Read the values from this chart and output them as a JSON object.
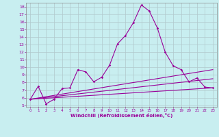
{
  "xlabel": "Windchill (Refroidissement éolien,°C)",
  "xlim": [
    -0.5,
    23.5
  ],
  "ylim": [
    4.8,
    18.5
  ],
  "xticks": [
    0,
    1,
    2,
    3,
    4,
    5,
    6,
    7,
    8,
    9,
    10,
    11,
    12,
    13,
    14,
    15,
    16,
    17,
    18,
    19,
    20,
    21,
    22,
    23
  ],
  "yticks": [
    5,
    6,
    7,
    8,
    9,
    10,
    11,
    12,
    13,
    14,
    15,
    16,
    17,
    18
  ],
  "bg_color": "#c8eef0",
  "line_color": "#990099",
  "grid_color": "#b0c8cc",
  "line1_x": [
    0,
    1,
    2,
    3,
    4,
    5,
    6,
    7,
    8,
    9,
    10,
    11,
    12,
    13,
    14,
    15,
    16,
    17,
    18,
    19,
    20,
    21,
    22,
    23
  ],
  "line1_y": [
    5.8,
    7.5,
    5.2,
    5.8,
    7.2,
    7.3,
    9.7,
    9.4,
    8.1,
    8.7,
    10.3,
    13.1,
    14.2,
    15.9,
    18.2,
    17.4,
    15.2,
    12.0,
    10.2,
    9.7,
    8.1,
    8.6,
    7.4,
    7.3
  ],
  "line2_x": [
    0,
    23
  ],
  "line2_y": [
    5.8,
    7.3
  ],
  "line3_x": [
    0,
    23
  ],
  "line3_y": [
    5.8,
    8.5
  ],
  "line4_x": [
    0,
    23
  ],
  "line4_y": [
    5.8,
    9.7
  ]
}
